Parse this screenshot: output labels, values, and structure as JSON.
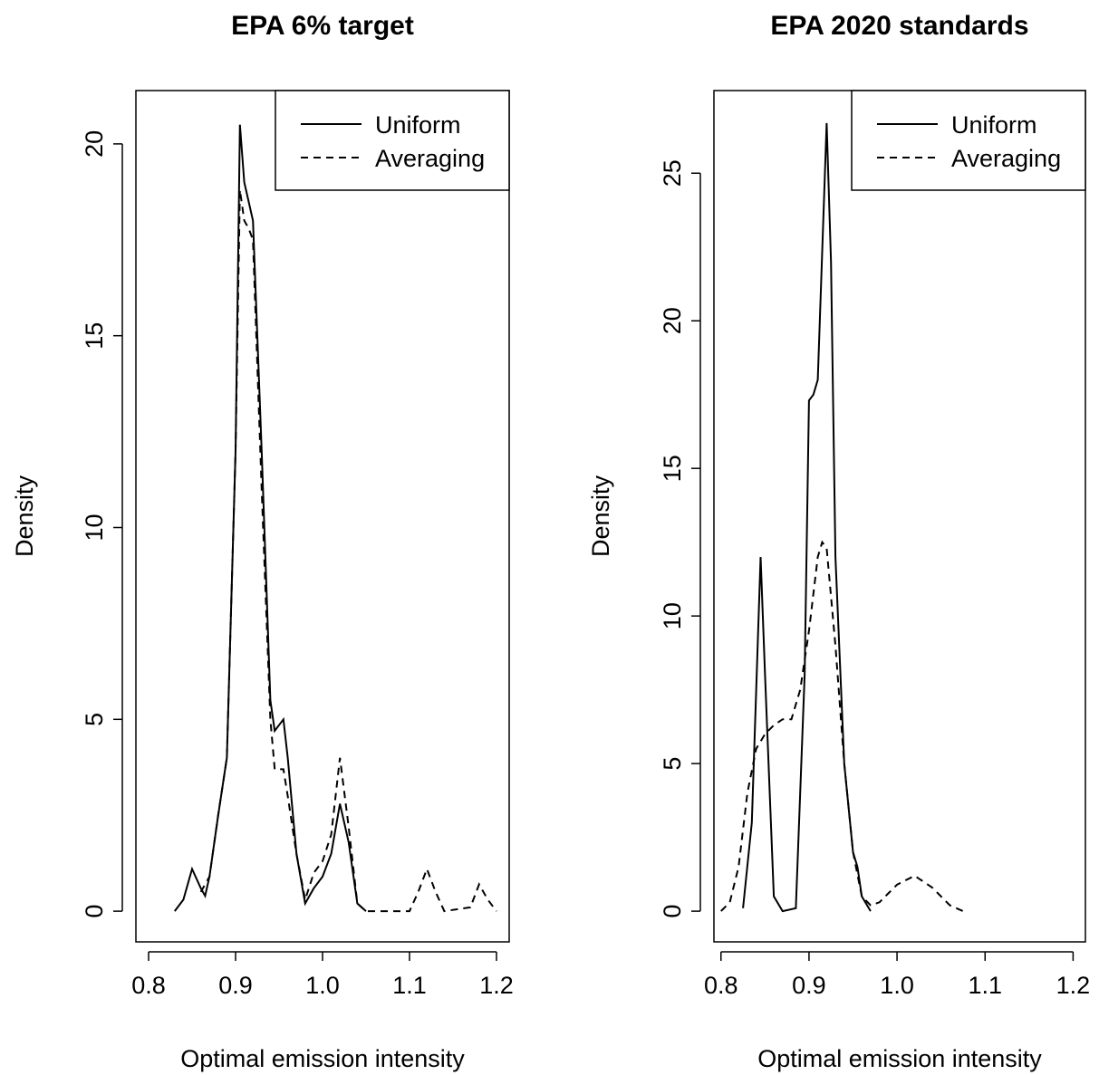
{
  "chart_data": [
    {
      "type": "line",
      "title": "EPA 6% target",
      "xlabel": "Optimal emission intensity",
      "ylabel": "Density",
      "xlim": [
        0.7854,
        1.2146
      ],
      "ylim": [
        -0.8,
        21.39
      ],
      "xticks": [
        0.8,
        0.9,
        {
          "value": 1.0,
          "label": "1.0"
        },
        1.1,
        1.2
      ],
      "yticks": [
        0,
        5,
        10,
        15,
        20
      ],
      "legend": "top-right",
      "series": [
        {
          "name": "Uniform",
          "color": "#000000",
          "style": "solid",
          "x": [
            0.83,
            0.84,
            0.85,
            0.86,
            0.865,
            0.87,
            0.88,
            0.89,
            0.9,
            0.905,
            0.91,
            0.915,
            0.92,
            0.93,
            0.94,
            0.945,
            0.955,
            0.96,
            0.97,
            0.98,
            0.99,
            1.0,
            1.01,
            1.02,
            1.03,
            1.04,
            1.05
          ],
          "values": [
            0,
            0.3,
            1.1,
            0.6,
            0.4,
            0.9,
            2.5,
            4,
            12,
            20.5,
            19,
            18.5,
            18,
            12,
            5.5,
            4.7,
            5,
            4,
            1.5,
            0.2,
            0.6,
            0.9,
            1.5,
            2.8,
            1.8,
            0.2,
            0
          ]
        },
        {
          "name": "Averaging",
          "color": "#000000",
          "style": "dashed",
          "x": [
            0.86,
            0.87,
            0.88,
            0.89,
            0.9,
            0.905,
            0.91,
            0.915,
            0.92,
            0.93,
            0.94,
            0.945,
            0.955,
            0.96,
            0.97,
            0.98,
            0.99,
            1.0,
            1.01,
            1.02,
            1.03,
            1.04,
            1.05,
            1.1,
            1.11,
            1.12,
            1.13,
            1.14,
            1.17,
            1.18,
            1.19,
            1.2
          ],
          "values": [
            0.5,
            0.9,
            2.5,
            4,
            12,
            18.8,
            18,
            17.8,
            17.5,
            11,
            5,
            3.7,
            3.7,
            3,
            1.5,
            0.3,
            1,
            1.3,
            2,
            4,
            2.2,
            0.2,
            0,
            0,
            0.5,
            1.1,
            0.5,
            0,
            0.1,
            0.7,
            0.3,
            0
          ]
        }
      ]
    },
    {
      "type": "line",
      "title": "EPA 2020 standards",
      "xlabel": "Optimal emission intensity",
      "ylabel": "Density",
      "xlim": [
        0.792,
        1.214
      ],
      "ylim": [
        -1.04,
        27.8
      ],
      "xticks": [
        0.8,
        0.9,
        {
          "value": 1.0,
          "label": "1.0"
        },
        1.1,
        1.2
      ],
      "yticks": [
        0,
        5,
        10,
        15,
        20,
        25
      ],
      "legend": "top-right",
      "series": [
        {
          "name": "Uniform",
          "color": "#000000",
          "style": "solid",
          "x": [
            0.825,
            0.835,
            0.845,
            0.85,
            0.86,
            0.87,
            0.885,
            0.895,
            0.9,
            0.905,
            0.91,
            0.92,
            0.925,
            0.93,
            0.94,
            0.95,
            0.955,
            0.96,
            0.97
          ],
          "values": [
            0.1,
            3,
            12,
            8,
            0.5,
            0,
            0.1,
            8,
            17.3,
            17.5,
            18,
            26.7,
            22,
            12,
            5,
            2,
            1.5,
            0.5,
            0
          ]
        },
        {
          "name": "Averaging",
          "color": "#000000",
          "style": "dashed",
          "x": [
            0.8,
            0.81,
            0.82,
            0.83,
            0.84,
            0.85,
            0.86,
            0.87,
            0.88,
            0.89,
            0.9,
            0.91,
            0.915,
            0.92,
            0.93,
            0.94,
            0.95,
            0.96,
            0.97,
            0.98,
            0.99,
            1.0,
            1.02,
            1.04,
            1.06,
            1.075
          ],
          "values": [
            0,
            0.3,
            1.5,
            4,
            5.5,
            6,
            6.3,
            6.5,
            6.5,
            7.5,
            9.5,
            12,
            12.5,
            12.3,
            9,
            5,
            2,
            0.5,
            0.2,
            0.3,
            0.6,
            0.9,
            1.2,
            0.8,
            0.2,
            0
          ]
        }
      ]
    }
  ]
}
